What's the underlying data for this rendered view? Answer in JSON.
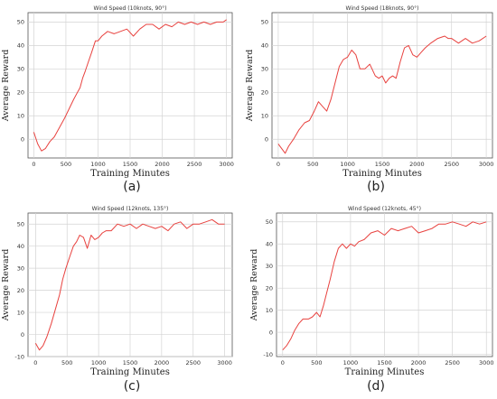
{
  "chart_data": [
    {
      "type": "line",
      "title": "Wind Speed (10knots, 90°)",
      "xlabel": "Training Minutes",
      "ylabel": "Average Reward",
      "caption": "(a)",
      "xlim": [
        -90,
        3090
      ],
      "ylim": [
        -8,
        54
      ],
      "xticks": [
        0,
        500,
        1000,
        1500,
        2000,
        2500,
        3000
      ],
      "yticks": [
        0,
        10,
        20,
        30,
        40,
        50
      ],
      "grid": true,
      "series": [
        {
          "color": "#e8423f",
          "points": [
            [
              0,
              3
            ],
            [
              60,
              -2
            ],
            [
              120,
              -5
            ],
            [
              180,
              -4
            ],
            [
              250,
              -1
            ],
            [
              320,
              1
            ],
            [
              400,
              5
            ],
            [
              480,
              9
            ],
            [
              550,
              13
            ],
            [
              620,
              17
            ],
            [
              680,
              20
            ],
            [
              720,
              22
            ],
            [
              760,
              26
            ],
            [
              800,
              29
            ],
            [
              850,
              33
            ],
            [
              900,
              37
            ],
            [
              960,
              42
            ],
            [
              1000,
              42
            ],
            [
              1060,
              44
            ],
            [
              1150,
              46
            ],
            [
              1250,
              45
            ],
            [
              1350,
              46
            ],
            [
              1450,
              47
            ],
            [
              1550,
              44
            ],
            [
              1650,
              47
            ],
            [
              1750,
              49
            ],
            [
              1850,
              49
            ],
            [
              1950,
              47
            ],
            [
              2050,
              49
            ],
            [
              2150,
              48
            ],
            [
              2250,
              50
            ],
            [
              2350,
              49
            ],
            [
              2450,
              50
            ],
            [
              2550,
              49
            ],
            [
              2650,
              50
            ],
            [
              2750,
              49
            ],
            [
              2850,
              50
            ],
            [
              2950,
              50
            ],
            [
              3000,
              51
            ]
          ]
        }
      ]
    },
    {
      "type": "line",
      "title": "Wind Speed (18knots, 90°)",
      "xlabel": "Training Minutes",
      "ylabel": "Average Reward",
      "caption": "(b)",
      "xlim": [
        -90,
        3090
      ],
      "ylim": [
        -8,
        54
      ],
      "xticks": [
        0,
        500,
        1000,
        1500,
        2000,
        2500,
        3000
      ],
      "yticks": [
        0,
        10,
        20,
        30,
        40,
        50
      ],
      "grid": true,
      "series": [
        {
          "color": "#e8423f",
          "points": [
            [
              0,
              -2
            ],
            [
              50,
              -4
            ],
            [
              100,
              -6
            ],
            [
              150,
              -3
            ],
            [
              220,
              0
            ],
            [
              300,
              4
            ],
            [
              380,
              7
            ],
            [
              450,
              8
            ],
            [
              520,
              12
            ],
            [
              580,
              16
            ],
            [
              640,
              14
            ],
            [
              700,
              12
            ],
            [
              760,
              17
            ],
            [
              820,
              24
            ],
            [
              880,
              31
            ],
            [
              940,
              34
            ],
            [
              1000,
              35
            ],
            [
              1060,
              38
            ],
            [
              1120,
              36
            ],
            [
              1180,
              30
            ],
            [
              1250,
              30
            ],
            [
              1320,
              32
            ],
            [
              1400,
              27
            ],
            [
              1450,
              26
            ],
            [
              1500,
              27
            ],
            [
              1550,
              24
            ],
            [
              1600,
              26
            ],
            [
              1650,
              27
            ],
            [
              1700,
              26
            ],
            [
              1760,
              33
            ],
            [
              1820,
              39
            ],
            [
              1880,
              40
            ],
            [
              1940,
              36
            ],
            [
              2000,
              35
            ],
            [
              2060,
              37
            ],
            [
              2120,
              39
            ],
            [
              2200,
              41
            ],
            [
              2300,
              43
            ],
            [
              2400,
              44
            ],
            [
              2450,
              43
            ],
            [
              2500,
              43
            ],
            [
              2600,
              41
            ],
            [
              2700,
              43
            ],
            [
              2800,
              41
            ],
            [
              2900,
              42
            ],
            [
              3000,
              44
            ]
          ]
        }
      ]
    },
    {
      "type": "line",
      "title": "Wind Speed (12knots, 135°)",
      "xlabel": "Training Minutes",
      "ylabel": "Average Reward",
      "caption": "(c)",
      "xlim": [
        -120,
        3120
      ],
      "ylim": [
        -10,
        55
      ],
      "xticks": [
        0,
        500,
        1000,
        1500,
        2000,
        2500,
        3000
      ],
      "yticks": [
        -10,
        0,
        10,
        20,
        30,
        40,
        50
      ],
      "grid": true,
      "series": [
        {
          "color": "#e8423f",
          "points": [
            [
              0,
              -4
            ],
            [
              60,
              -7
            ],
            [
              120,
              -5
            ],
            [
              180,
              -1
            ],
            [
              250,
              5
            ],
            [
              320,
              12
            ],
            [
              380,
              18
            ],
            [
              430,
              25
            ],
            [
              480,
              30
            ],
            [
              540,
              35
            ],
            [
              600,
              40
            ],
            [
              650,
              42
            ],
            [
              700,
              45
            ],
            [
              760,
              44
            ],
            [
              820,
              39
            ],
            [
              880,
              45
            ],
            [
              940,
              43
            ],
            [
              1000,
              44
            ],
            [
              1060,
              46
            ],
            [
              1120,
              47
            ],
            [
              1200,
              47
            ],
            [
              1300,
              50
            ],
            [
              1400,
              49
            ],
            [
              1500,
              50
            ],
            [
              1600,
              48
            ],
            [
              1700,
              50
            ],
            [
              1800,
              49
            ],
            [
              1900,
              48
            ],
            [
              2000,
              49
            ],
            [
              2100,
              47
            ],
            [
              2200,
              50
            ],
            [
              2300,
              51
            ],
            [
              2400,
              48
            ],
            [
              2500,
              50
            ],
            [
              2600,
              50
            ],
            [
              2700,
              51
            ],
            [
              2800,
              52
            ],
            [
              2900,
              50
            ],
            [
              3000,
              50
            ]
          ]
        }
      ]
    },
    {
      "type": "line",
      "title": "Wind Speed (12knots, 45°)",
      "xlabel": "Training Minutes",
      "ylabel": "Average Reward",
      "caption": "(d)",
      "xlim": [
        -90,
        3090
      ],
      "ylim": [
        -11,
        54
      ],
      "xticks": [
        0,
        500,
        1000,
        1500,
        2000,
        2500,
        3000
      ],
      "yticks": [
        -10,
        0,
        10,
        20,
        30,
        40,
        50
      ],
      "grid": true,
      "series": [
        {
          "color": "#e8423f",
          "points": [
            [
              0,
              -8
            ],
            [
              60,
              -6
            ],
            [
              120,
              -3
            ],
            [
              180,
              1
            ],
            [
              240,
              4
            ],
            [
              300,
              6
            ],
            [
              380,
              6
            ],
            [
              440,
              7
            ],
            [
              500,
              9
            ],
            [
              550,
              7
            ],
            [
              600,
              12
            ],
            [
              650,
              18
            ],
            [
              700,
              24
            ],
            [
              760,
              32
            ],
            [
              820,
              38
            ],
            [
              880,
              40
            ],
            [
              940,
              38
            ],
            [
              1000,
              40
            ],
            [
              1060,
              39
            ],
            [
              1120,
              41
            ],
            [
              1200,
              42
            ],
            [
              1300,
              45
            ],
            [
              1400,
              46
            ],
            [
              1500,
              44
            ],
            [
              1600,
              47
            ],
            [
              1700,
              46
            ],
            [
              1800,
              47
            ],
            [
              1900,
              48
            ],
            [
              2000,
              45
            ],
            [
              2100,
              46
            ],
            [
              2200,
              47
            ],
            [
              2300,
              49
            ],
            [
              2400,
              49
            ],
            [
              2500,
              50
            ],
            [
              2600,
              49
            ],
            [
              2700,
              48
            ],
            [
              2800,
              50
            ],
            [
              2900,
              49
            ],
            [
              3000,
              50
            ]
          ]
        }
      ]
    }
  ]
}
